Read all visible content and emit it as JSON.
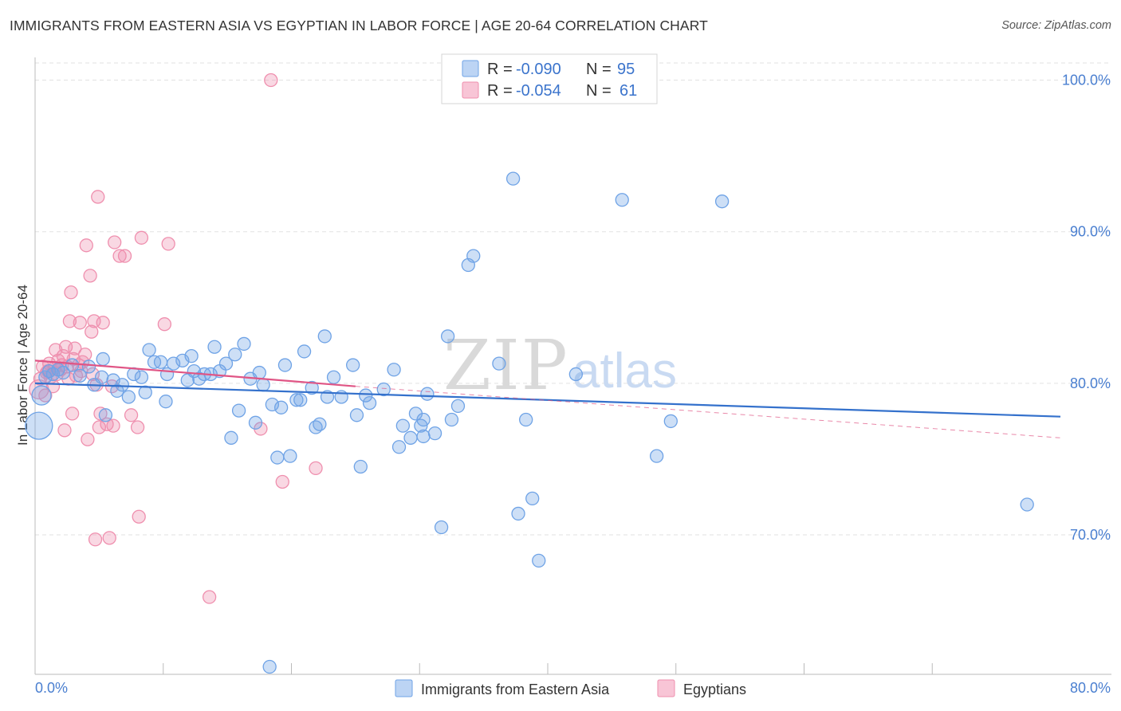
{
  "title": "IMMIGRANTS FROM EASTERN ASIA VS EGYPTIAN IN LABOR FORCE | AGE 20-64 CORRELATION CHART",
  "source": "Source: ZipAtlas.com",
  "watermark": {
    "zip": "ZIP",
    "atlas": "atlas"
  },
  "colors": {
    "blue": "#6fa3e6",
    "blue_line": "#3471cc",
    "pink": "#ef8fae",
    "pink_line": "#e05585",
    "grid": "#e2e2e2",
    "axis_text": "#4a7fd0"
  },
  "legend": {
    "rows": [
      {
        "r_label": "R =",
        "r_value": "-0.090",
        "n_label": "N =",
        "n_value": "95"
      },
      {
        "r_label": "R =",
        "r_value": "-0.054",
        "n_label": "N =",
        "n_value": "61"
      }
    ]
  },
  "chart_data": {
    "type": "scatter",
    "title": "IMMIGRANTS FROM EASTERN ASIA VS EGYPTIAN IN LABOR FORCE | AGE 20-64 CORRELATION CHART",
    "xlabel": "",
    "ylabel": "In Labor Force | Age 20-64",
    "xlim": [
      0,
      80
    ],
    "ylim": [
      60.8,
      101.5
    ],
    "x_tick_labels": [
      "0.0%",
      "80.0%"
    ],
    "y_ticks": [
      70,
      80,
      90,
      100
    ],
    "y_tick_labels": [
      "70.0%",
      "80.0%",
      "90.0%",
      "100.0%"
    ],
    "grid": true,
    "legend_position": "bottom-center",
    "series": [
      {
        "name": "Immigrants from Eastern Asia",
        "color": "#6fa3e6",
        "r": -0.09,
        "n": 95,
        "trend": {
          "x": [
            0,
            80
          ],
          "y": [
            80.0,
            77.8
          ],
          "style": "solid"
        },
        "points": [
          {
            "x": 0.3,
            "y": 77.2,
            "s": 3
          },
          {
            "x": 0.5,
            "y": 79.2,
            "s": 2
          },
          {
            "x": 0.8,
            "y": 80.4,
            "s": 1
          },
          {
            "x": 1.1,
            "y": 80.8,
            "s": 1
          },
          {
            "x": 1.4,
            "y": 80.6,
            "s": 1
          },
          {
            "x": 1.8,
            "y": 80.9,
            "s": 1
          },
          {
            "x": 2.2,
            "y": 80.7,
            "s": 1
          },
          {
            "x": 2.9,
            "y": 81.2,
            "s": 1
          },
          {
            "x": 3.5,
            "y": 80.5,
            "s": 1
          },
          {
            "x": 4.2,
            "y": 81.1,
            "s": 1
          },
          {
            "x": 4.6,
            "y": 79.9,
            "s": 1
          },
          {
            "x": 5.2,
            "y": 80.4,
            "s": 1
          },
          {
            "x": 5.3,
            "y": 81.6,
            "s": 1
          },
          {
            "x": 5.5,
            "y": 77.9,
            "s": 1
          },
          {
            "x": 6.1,
            "y": 80.2,
            "s": 1
          },
          {
            "x": 6.4,
            "y": 79.5,
            "s": 1
          },
          {
            "x": 6.8,
            "y": 79.9,
            "s": 1
          },
          {
            "x": 7.3,
            "y": 79.1,
            "s": 1
          },
          {
            "x": 7.7,
            "y": 80.6,
            "s": 1
          },
          {
            "x": 8.3,
            "y": 80.4,
            "s": 1
          },
          {
            "x": 8.6,
            "y": 79.4,
            "s": 1
          },
          {
            "x": 8.9,
            "y": 82.2,
            "s": 1
          },
          {
            "x": 9.3,
            "y": 81.4,
            "s": 1
          },
          {
            "x": 9.8,
            "y": 81.4,
            "s": 1
          },
          {
            "x": 10.2,
            "y": 78.8,
            "s": 1
          },
          {
            "x": 10.3,
            "y": 80.6,
            "s": 1
          },
          {
            "x": 10.8,
            "y": 81.3,
            "s": 1
          },
          {
            "x": 11.5,
            "y": 81.5,
            "s": 1
          },
          {
            "x": 11.9,
            "y": 80.2,
            "s": 1
          },
          {
            "x": 12.2,
            "y": 81.8,
            "s": 1
          },
          {
            "x": 12.4,
            "y": 80.8,
            "s": 1
          },
          {
            "x": 12.8,
            "y": 80.3,
            "s": 1
          },
          {
            "x": 13.2,
            "y": 80.6,
            "s": 1
          },
          {
            "x": 13.7,
            "y": 80.6,
            "s": 1
          },
          {
            "x": 14.0,
            "y": 82.4,
            "s": 1
          },
          {
            "x": 14.4,
            "y": 80.8,
            "s": 1
          },
          {
            "x": 14.9,
            "y": 81.3,
            "s": 1
          },
          {
            "x": 15.3,
            "y": 76.4,
            "s": 1
          },
          {
            "x": 15.6,
            "y": 81.9,
            "s": 1
          },
          {
            "x": 15.9,
            "y": 78.2,
            "s": 1
          },
          {
            "x": 16.3,
            "y": 82.6,
            "s": 1
          },
          {
            "x": 16.8,
            "y": 80.3,
            "s": 1
          },
          {
            "x": 17.2,
            "y": 77.4,
            "s": 1
          },
          {
            "x": 17.5,
            "y": 80.7,
            "s": 1
          },
          {
            "x": 17.8,
            "y": 79.9,
            "s": 1
          },
          {
            "x": 18.5,
            "y": 78.6,
            "s": 1
          },
          {
            "x": 18.9,
            "y": 75.1,
            "s": 1
          },
          {
            "x": 19.2,
            "y": 78.4,
            "s": 1
          },
          {
            "x": 19.5,
            "y": 81.2,
            "s": 1
          },
          {
            "x": 19.9,
            "y": 75.2,
            "s": 1
          },
          {
            "x": 20.4,
            "y": 78.9,
            "s": 1
          },
          {
            "x": 20.7,
            "y": 78.9,
            "s": 1
          },
          {
            "x": 21.0,
            "y": 82.1,
            "s": 1
          },
          {
            "x": 21.6,
            "y": 79.7,
            "s": 1
          },
          {
            "x": 21.9,
            "y": 77.1,
            "s": 1
          },
          {
            "x": 22.2,
            "y": 77.3,
            "s": 1
          },
          {
            "x": 22.6,
            "y": 83.1,
            "s": 1
          },
          {
            "x": 22.8,
            "y": 79.1,
            "s": 1
          },
          {
            "x": 23.3,
            "y": 80.4,
            "s": 1
          },
          {
            "x": 23.9,
            "y": 79.1,
            "s": 1
          },
          {
            "x": 24.8,
            "y": 81.2,
            "s": 1
          },
          {
            "x": 25.1,
            "y": 77.9,
            "s": 1
          },
          {
            "x": 25.4,
            "y": 74.5,
            "s": 1
          },
          {
            "x": 25.8,
            "y": 79.2,
            "s": 1
          },
          {
            "x": 26.1,
            "y": 78.7,
            "s": 1
          },
          {
            "x": 27.2,
            "y": 79.6,
            "s": 1
          },
          {
            "x": 28.0,
            "y": 80.9,
            "s": 1
          },
          {
            "x": 28.4,
            "y": 75.8,
            "s": 1
          },
          {
            "x": 28.7,
            "y": 77.2,
            "s": 1
          },
          {
            "x": 29.3,
            "y": 76.4,
            "s": 1
          },
          {
            "x": 29.7,
            "y": 78.0,
            "s": 1
          },
          {
            "x": 30.1,
            "y": 77.2,
            "s": 1
          },
          {
            "x": 30.3,
            "y": 77.6,
            "s": 1
          },
          {
            "x": 30.6,
            "y": 79.3,
            "s": 1
          },
          {
            "x": 30.3,
            "y": 76.5,
            "s": 1
          },
          {
            "x": 31.2,
            "y": 76.7,
            "s": 1
          },
          {
            "x": 31.7,
            "y": 70.5,
            "s": 1
          },
          {
            "x": 32.2,
            "y": 83.1,
            "s": 1
          },
          {
            "x": 32.5,
            "y": 77.6,
            "s": 1
          },
          {
            "x": 33.0,
            "y": 78.5,
            "s": 1
          },
          {
            "x": 33.8,
            "y": 87.8,
            "s": 1
          },
          {
            "x": 34.2,
            "y": 88.4,
            "s": 1
          },
          {
            "x": 36.2,
            "y": 81.3,
            "s": 1
          },
          {
            "x": 37.3,
            "y": 93.5,
            "s": 1
          },
          {
            "x": 37.7,
            "y": 71.4,
            "s": 1
          },
          {
            "x": 38.3,
            "y": 77.6,
            "s": 1
          },
          {
            "x": 38.8,
            "y": 72.4,
            "s": 1
          },
          {
            "x": 39.3,
            "y": 68.3,
            "s": 1
          },
          {
            "x": 42.2,
            "y": 80.6,
            "s": 1
          },
          {
            "x": 45.8,
            "y": 92.1,
            "s": 1
          },
          {
            "x": 48.5,
            "y": 75.2,
            "s": 1
          },
          {
            "x": 49.6,
            "y": 77.5,
            "s": 1
          },
          {
            "x": 53.6,
            "y": 92.0,
            "s": 1
          },
          {
            "x": 77.4,
            "y": 72.0,
            "s": 1
          },
          {
            "x": 18.3,
            "y": 61.3,
            "s": 1
          }
        ]
      },
      {
        "name": "Egyptians",
        "color": "#ef8fae",
        "r": -0.054,
        "n": 61,
        "trend": {
          "x": [
            0,
            25
          ],
          "y": [
            81.5,
            79.8
          ],
          "style": "solid",
          "extended": {
            "x": [
              25,
              80
            ],
            "y": [
              79.8,
              76.4
            ],
            "style": "dashed"
          }
        },
        "points": [
          {
            "x": 0.3,
            "y": 79.6,
            "s": 2
          },
          {
            "x": 0.4,
            "y": 80.3,
            "s": 1
          },
          {
            "x": 0.6,
            "y": 81.1,
            "s": 1
          },
          {
            "x": 0.8,
            "y": 79.2,
            "s": 1
          },
          {
            "x": 0.9,
            "y": 80.7,
            "s": 1
          },
          {
            "x": 1.1,
            "y": 81.3,
            "s": 1
          },
          {
            "x": 1.2,
            "y": 80.4,
            "s": 1
          },
          {
            "x": 1.4,
            "y": 79.8,
            "s": 1
          },
          {
            "x": 1.5,
            "y": 81.0,
            "s": 1
          },
          {
            "x": 1.6,
            "y": 82.2,
            "s": 1
          },
          {
            "x": 1.7,
            "y": 80.6,
            "s": 1
          },
          {
            "x": 1.8,
            "y": 81.5,
            "s": 1
          },
          {
            "x": 2.0,
            "y": 80.9,
            "s": 1
          },
          {
            "x": 2.2,
            "y": 81.8,
            "s": 1
          },
          {
            "x": 2.3,
            "y": 76.9,
            "s": 1
          },
          {
            "x": 2.4,
            "y": 82.4,
            "s": 1
          },
          {
            "x": 2.5,
            "y": 81.1,
            "s": 1
          },
          {
            "x": 2.6,
            "y": 80.3,
            "s": 1
          },
          {
            "x": 2.7,
            "y": 84.1,
            "s": 1
          },
          {
            "x": 2.8,
            "y": 86.0,
            "s": 1
          },
          {
            "x": 2.9,
            "y": 78.0,
            "s": 1
          },
          {
            "x": 3.0,
            "y": 81.6,
            "s": 1
          },
          {
            "x": 3.1,
            "y": 82.3,
            "s": 1
          },
          {
            "x": 3.2,
            "y": 80.5,
            "s": 1
          },
          {
            "x": 3.4,
            "y": 81.2,
            "s": 1
          },
          {
            "x": 3.5,
            "y": 84.0,
            "s": 1
          },
          {
            "x": 3.6,
            "y": 80.8,
            "s": 1
          },
          {
            "x": 3.7,
            "y": 81.4,
            "s": 1
          },
          {
            "x": 3.9,
            "y": 81.9,
            "s": 1
          },
          {
            "x": 4.0,
            "y": 89.1,
            "s": 1
          },
          {
            "x": 4.1,
            "y": 76.3,
            "s": 1
          },
          {
            "x": 4.3,
            "y": 87.1,
            "s": 1
          },
          {
            "x": 4.4,
            "y": 83.4,
            "s": 1
          },
          {
            "x": 4.5,
            "y": 80.6,
            "s": 1
          },
          {
            "x": 4.6,
            "y": 84.1,
            "s": 1
          },
          {
            "x": 4.7,
            "y": 69.7,
            "s": 1
          },
          {
            "x": 4.8,
            "y": 79.9,
            "s": 1
          },
          {
            "x": 4.9,
            "y": 92.3,
            "s": 1
          },
          {
            "x": 5.0,
            "y": 77.1,
            "s": 1
          },
          {
            "x": 5.1,
            "y": 78.0,
            "s": 1
          },
          {
            "x": 5.3,
            "y": 84.0,
            "s": 1
          },
          {
            "x": 5.6,
            "y": 77.3,
            "s": 1
          },
          {
            "x": 5.8,
            "y": 69.8,
            "s": 1
          },
          {
            "x": 6.0,
            "y": 79.8,
            "s": 1
          },
          {
            "x": 6.1,
            "y": 77.2,
            "s": 1
          },
          {
            "x": 6.2,
            "y": 89.3,
            "s": 1
          },
          {
            "x": 6.6,
            "y": 88.4,
            "s": 1
          },
          {
            "x": 7.0,
            "y": 88.4,
            "s": 1
          },
          {
            "x": 7.5,
            "y": 77.9,
            "s": 1
          },
          {
            "x": 8.0,
            "y": 77.1,
            "s": 1
          },
          {
            "x": 8.1,
            "y": 71.2,
            "s": 1
          },
          {
            "x": 8.3,
            "y": 89.6,
            "s": 1
          },
          {
            "x": 10.1,
            "y": 83.9,
            "s": 1
          },
          {
            "x": 10.4,
            "y": 89.2,
            "s": 1
          },
          {
            "x": 13.6,
            "y": 65.9,
            "s": 1
          },
          {
            "x": 17.6,
            "y": 77.0,
            "s": 1
          },
          {
            "x": 18.4,
            "y": 100.0,
            "s": 1
          },
          {
            "x": 19.3,
            "y": 73.5,
            "s": 1
          },
          {
            "x": 21.9,
            "y": 74.4,
            "s": 1
          },
          {
            "x": 1.0,
            "y": 80.8,
            "s": 1
          },
          {
            "x": 2.1,
            "y": 81.2,
            "s": 1
          }
        ]
      }
    ]
  }
}
